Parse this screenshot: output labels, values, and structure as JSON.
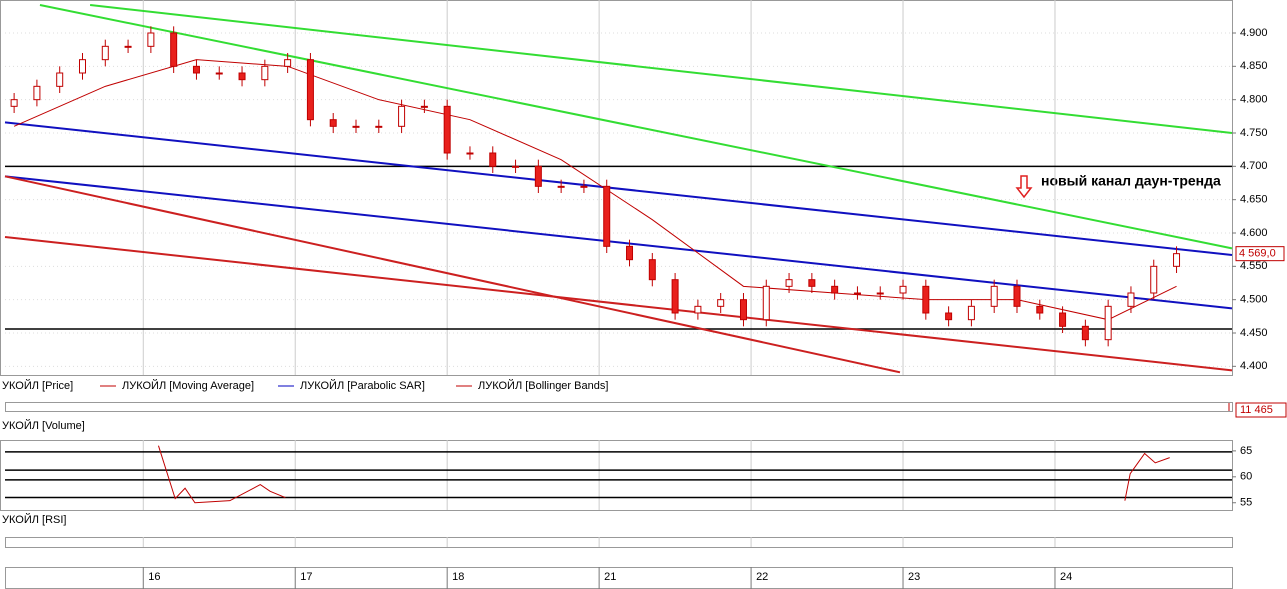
{
  "chart_data": [
    {
      "type": "candlestick",
      "name": "УКОЙЛ [Price]",
      "x": [
        3,
        6,
        9,
        12,
        15,
        18,
        21,
        24,
        27,
        30,
        33,
        36,
        39,
        42,
        45,
        48,
        51,
        54,
        57,
        60,
        63,
        66,
        69,
        72,
        75,
        78,
        81,
        84,
        87,
        90,
        93,
        96,
        99,
        102,
        105,
        108,
        111,
        114,
        117,
        120,
        123,
        126,
        129,
        132,
        135,
        138,
        141,
        144,
        147,
        150,
        153,
        156
      ],
      "open": [
        4.79,
        4.8,
        4.82,
        4.84,
        4.86,
        4.88,
        4.88,
        4.9,
        4.85,
        4.84,
        4.84,
        4.83,
        4.85,
        4.86,
        4.77,
        4.76,
        4.76,
        4.76,
        4.79,
        4.79,
        4.72,
        4.72,
        4.7,
        4.7,
        4.67,
        4.67,
        4.67,
        4.58,
        4.56,
        4.53,
        4.48,
        4.49,
        4.5,
        4.47,
        4.52,
        4.53,
        4.52,
        4.51,
        4.51,
        4.51,
        4.52,
        4.48,
        4.47,
        4.49,
        4.52,
        4.49,
        4.48,
        4.46,
        4.44,
        4.49,
        4.51,
        4.55
      ],
      "high": [
        4.81,
        4.83,
        4.85,
        4.87,
        4.89,
        4.89,
        4.91,
        4.91,
        4.86,
        4.85,
        4.85,
        4.86,
        4.87,
        4.87,
        4.78,
        4.77,
        4.77,
        4.8,
        4.8,
        4.8,
        4.73,
        4.73,
        4.71,
        4.71,
        4.68,
        4.68,
        4.68,
        4.59,
        4.57,
        4.54,
        4.5,
        4.51,
        4.51,
        4.53,
        4.54,
        4.54,
        4.53,
        4.52,
        4.52,
        4.53,
        4.53,
        4.49,
        4.5,
        4.53,
        4.53,
        4.5,
        4.49,
        4.47,
        4.5,
        4.52,
        4.56,
        4.58
      ],
      "low": [
        4.78,
        4.79,
        4.81,
        4.83,
        4.85,
        4.87,
        4.87,
        4.84,
        4.83,
        4.83,
        4.82,
        4.82,
        4.84,
        4.76,
        4.75,
        4.75,
        4.75,
        4.75,
        4.78,
        4.71,
        4.71,
        4.69,
        4.69,
        4.66,
        4.66,
        4.66,
        4.57,
        4.55,
        4.52,
        4.47,
        4.47,
        4.48,
        4.46,
        4.46,
        4.51,
        4.51,
        4.5,
        4.5,
        4.5,
        4.5,
        4.47,
        4.46,
        4.46,
        4.48,
        4.48,
        4.47,
        4.45,
        4.43,
        4.43,
        4.48,
        4.5,
        4.54
      ],
      "close": [
        4.8,
        4.82,
        4.84,
        4.86,
        4.88,
        4.88,
        4.9,
        4.85,
        4.84,
        4.84,
        4.83,
        4.85,
        4.86,
        4.77,
        4.76,
        4.76,
        4.76,
        4.79,
        4.79,
        4.72,
        4.72,
        4.7,
        4.7,
        4.67,
        4.67,
        4.67,
        4.58,
        4.56,
        4.53,
        4.48,
        4.49,
        4.5,
        4.47,
        4.52,
        4.53,
        4.52,
        4.51,
        4.51,
        4.51,
        4.52,
        4.48,
        4.47,
        4.49,
        4.52,
        4.49,
        4.48,
        4.46,
        4.44,
        4.49,
        4.51,
        4.55,
        4.569
      ],
      "up_color": "#ffffff",
      "down_color": "#e8201c",
      "edge_color": "#c00000",
      "xlim": [
        1.8,
        163.3
      ],
      "xticks": [
        {
          "value": 20,
          "label": "16"
        },
        {
          "value": 40,
          "label": "17"
        },
        {
          "value": 60,
          "label": "18"
        },
        {
          "value": 80,
          "label": "21"
        },
        {
          "value": 100,
          "label": "22"
        },
        {
          "value": 120,
          "label": "23"
        },
        {
          "value": 140,
          "label": "24"
        }
      ],
      "ylim": [
        4.387,
        4.9495
      ],
      "yticks": [
        {
          "value": 4.9,
          "label": "4.900"
        },
        {
          "value": 4.85,
          "label": "4.850"
        },
        {
          "value": 4.8,
          "label": "4.800"
        },
        {
          "value": 4.75,
          "label": "4.750"
        },
        {
          "value": 4.7,
          "label": "4.700"
        },
        {
          "value": 4.65,
          "label": "4.650"
        },
        {
          "value": 4.6,
          "label": "4.600"
        },
        {
          "value": 4.55,
          "label": "4.550"
        },
        {
          "value": 4.5,
          "label": "4.500"
        },
        {
          "value": 4.45,
          "label": "4.450"
        },
        {
          "value": 4.4,
          "label": "4.400"
        }
      ],
      "grid": true,
      "series": [
        {
          "name": "ЛУКОЙЛ [Moving Average]",
          "color": "#c00000",
          "x": [
            3,
            15,
            27,
            39,
            51,
            63,
            75,
            87,
            99,
            111,
            123,
            135,
            147,
            156
          ],
          "values": [
            4.76,
            4.82,
            4.86,
            4.85,
            4.8,
            4.77,
            4.71,
            4.62,
            4.52,
            4.51,
            4.5,
            4.5,
            4.47,
            4.52
          ]
        }
      ],
      "indicators": [
        {
          "name": "ЛУКОЙЛ [Parabolic SAR]",
          "color": "#0000c0"
        },
        {
          "name": "ЛУКОЙЛ [Bollinger Bands]",
          "color": "#c00000"
        }
      ],
      "trend_lines": [
        {
          "color": "#33dd33",
          "x": [
            6.4,
            163.3
          ],
          "values": [
            4.942,
            4.577
          ]
        },
        {
          "color": "#33dd33",
          "x": [
            13,
            163.3
          ],
          "values": [
            4.942,
            4.75
          ]
        },
        {
          "color": "#1010c0",
          "x": [
            1.8,
            163.3
          ],
          "values": [
            4.766,
            4.567
          ]
        },
        {
          "color": "#1010c0",
          "x": [
            1.8,
            163.3
          ],
          "values": [
            4.685,
            4.487
          ]
        },
        {
          "color": "#cc2020",
          "x": [
            1.8,
            119.6
          ],
          "values": [
            4.685,
            4.391
          ]
        },
        {
          "color": "#cc2020",
          "x": [
            1.8,
            163.3
          ],
          "values": [
            4.594,
            4.394
          ]
        }
      ],
      "hlines": [
        4.7,
        4.456
      ],
      "last_value": {
        "value": 4.569,
        "label": "4 569,0"
      },
      "annotation": "новый канал даун-тренда"
    },
    {
      "type": "bar",
      "name": "УКОЙЛ [Volume]",
      "values": [
        11465
      ],
      "value_labels": [
        "11 465"
      ]
    },
    {
      "type": "line",
      "name": "УКОЙЛ [RSI]",
      "color": "#c00000",
      "x": [
        22,
        24.2,
        25.5,
        26.8,
        31.4,
        35.4,
        36.7,
        38.7,
        null,
        149.2,
        149.9,
        151.8,
        153.2,
        155.1
      ],
      "values": [
        66,
        55.8,
        57.8,
        55,
        55.4,
        58.5,
        57.2,
        56,
        null,
        55.4,
        60.6,
        64.5,
        62.7,
        63.7
      ],
      "ylim": [
        53.6,
        67.1
      ],
      "yticks": [
        55,
        60,
        65
      ],
      "hlines": [
        64.8,
        61.3,
        59.4,
        56
      ]
    }
  ]
}
